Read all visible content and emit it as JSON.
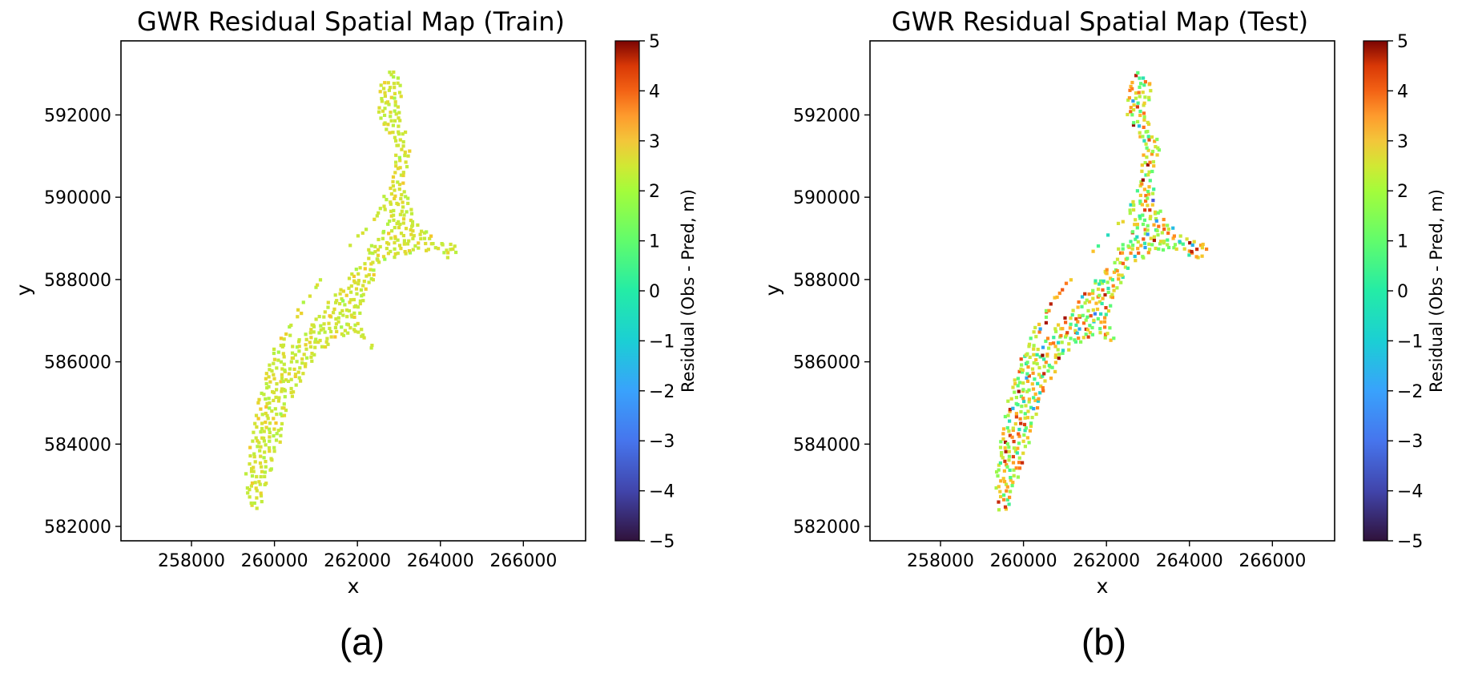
{
  "colors": {
    "axis": "#000000",
    "residual_base": "#9be44a"
  },
  "chart_data": [
    {
      "type": "scatter",
      "title": "GWR Residual Spatial Map (Train)",
      "xlabel": "x",
      "ylabel": "y",
      "panel_label": "(a)",
      "xlim": [
        256300,
        267500
      ],
      "ylim": [
        581650,
        593800
      ],
      "xticks": [
        258000,
        260000,
        262000,
        264000,
        266000
      ],
      "yticks": [
        582000,
        584000,
        586000,
        588000,
        590000,
        592000
      ],
      "xtick_labels": [
        "258000",
        "260000",
        "262000",
        "264000",
        "266000"
      ],
      "ytick_labels": [
        "582000",
        "584000",
        "586000",
        "588000",
        "590000",
        "592000"
      ],
      "colorbar": {
        "label": "Residual (Obs - Pred, m)",
        "colormap": "turbo",
        "range": [
          -5,
          5
        ],
        "ticks": [
          5,
          4,
          3,
          2,
          1,
          0,
          -1,
          -2,
          -3,
          -4,
          -5
        ],
        "tick_labels": [
          "5",
          "4",
          "3",
          "2",
          "1",
          "0",
          "−1",
          "−2",
          "−3",
          "−4",
          "−5"
        ]
      },
      "residual_noise": 0.25,
      "region_vertices": [
        [
          259400,
          582300
        ],
        [
          259300,
          583300
        ],
        [
          259600,
          585000
        ],
        [
          260000,
          586400
        ],
        [
          260700,
          587500
        ],
        [
          261500,
          588500
        ],
        [
          262400,
          589500
        ],
        [
          262800,
          590400
        ],
        [
          262900,
          591200
        ],
        [
          262500,
          592000
        ],
        [
          262500,
          592600
        ],
        [
          262800,
          593200
        ],
        [
          263100,
          592800
        ],
        [
          263000,
          592000
        ],
        [
          263300,
          591200
        ],
        [
          263100,
          590300
        ],
        [
          263400,
          589500
        ],
        [
          263900,
          589000
        ],
        [
          264500,
          588800
        ],
        [
          264300,
          588500
        ],
        [
          263500,
          588700
        ],
        [
          262600,
          588400
        ],
        [
          262200,
          587600
        ],
        [
          262000,
          587000
        ],
        [
          262500,
          586200
        ],
        [
          261800,
          586700
        ],
        [
          261000,
          586200
        ],
        [
          260400,
          585100
        ],
        [
          260200,
          584200
        ],
        [
          259900,
          583300
        ],
        [
          259700,
          582500
        ]
      ],
      "hole_vertices": [
        [
          260200,
          586200
        ],
        [
          261100,
          587200
        ],
        [
          261900,
          588200
        ],
        [
          262600,
          589200
        ],
        [
          262800,
          589800
        ],
        [
          262300,
          589300
        ],
        [
          261500,
          588500
        ],
        [
          260800,
          587500
        ]
      ]
    },
    {
      "type": "scatter",
      "title": "GWR Residual Spatial Map (Test)",
      "xlabel": "x",
      "ylabel": "y",
      "panel_label": "(b)",
      "xlim": [
        256300,
        267500
      ],
      "ylim": [
        581650,
        593800
      ],
      "xticks": [
        258000,
        260000,
        262000,
        264000,
        266000
      ],
      "yticks": [
        582000,
        584000,
        586000,
        588000,
        590000,
        592000
      ],
      "xtick_labels": [
        "258000",
        "260000",
        "262000",
        "264000",
        "266000"
      ],
      "ytick_labels": [
        "582000",
        "584000",
        "586000",
        "588000",
        "590000",
        "592000"
      ],
      "colorbar": {
        "label": "Residual (Obs - Pred, m)",
        "colormap": "turbo",
        "range": [
          -5,
          5
        ],
        "ticks": [
          5,
          4,
          3,
          2,
          1,
          0,
          -1,
          -2,
          -3,
          -4,
          -5
        ],
        "tick_labels": [
          "5",
          "4",
          "3",
          "2",
          "1",
          "0",
          "−1",
          "−2",
          "−3",
          "−4",
          "−5"
        ]
      },
      "residual_noise": 1.6,
      "region_vertices": [
        [
          259400,
          582300
        ],
        [
          259300,
          583300
        ],
        [
          259600,
          585000
        ],
        [
          260000,
          586400
        ],
        [
          260700,
          587500
        ],
        [
          261500,
          588500
        ],
        [
          262400,
          589500
        ],
        [
          262800,
          590400
        ],
        [
          262900,
          591200
        ],
        [
          262500,
          592000
        ],
        [
          262500,
          592600
        ],
        [
          262800,
          593200
        ],
        [
          263100,
          592800
        ],
        [
          263000,
          592000
        ],
        [
          263300,
          591200
        ],
        [
          263100,
          590300
        ],
        [
          263400,
          589500
        ],
        [
          263900,
          589000
        ],
        [
          264500,
          588800
        ],
        [
          264300,
          588500
        ],
        [
          263500,
          588700
        ],
        [
          262600,
          588400
        ],
        [
          262200,
          587600
        ],
        [
          262000,
          587000
        ],
        [
          262500,
          586200
        ],
        [
          261800,
          586700
        ],
        [
          261000,
          586200
        ],
        [
          260400,
          585100
        ],
        [
          260200,
          584200
        ],
        [
          259900,
          583300
        ],
        [
          259700,
          582500
        ]
      ],
      "hole_vertices": [
        [
          260200,
          586200
        ],
        [
          261100,
          587200
        ],
        [
          261900,
          588200
        ],
        [
          262600,
          589200
        ],
        [
          262800,
          589800
        ],
        [
          262300,
          589300
        ],
        [
          261500,
          588500
        ],
        [
          260800,
          587500
        ]
      ]
    }
  ]
}
